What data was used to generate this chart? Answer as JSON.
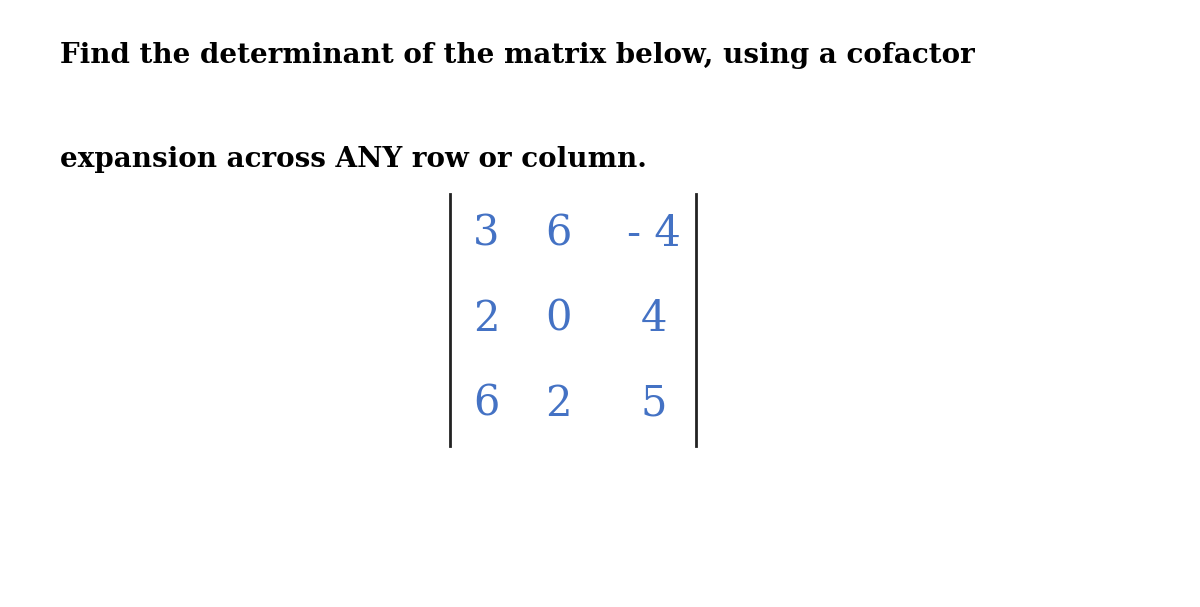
{
  "title_line1": "Find the determinant of the matrix below, using a cofactor",
  "title_line2": "expansion across ANY row or column.",
  "matrix_row1": [
    "3",
    "6",
    "- 4"
  ],
  "matrix_row2": [
    "2",
    "0",
    "4"
  ],
  "matrix_row3": [
    "6",
    "2",
    "5"
  ],
  "matrix_color": "#4472c4",
  "title_color": "#000000",
  "background_color": "#ffffff",
  "title_fontsize": 20,
  "matrix_fontsize": 30,
  "bar_color": "#222222",
  "fig_width": 12.0,
  "fig_height": 6.07
}
